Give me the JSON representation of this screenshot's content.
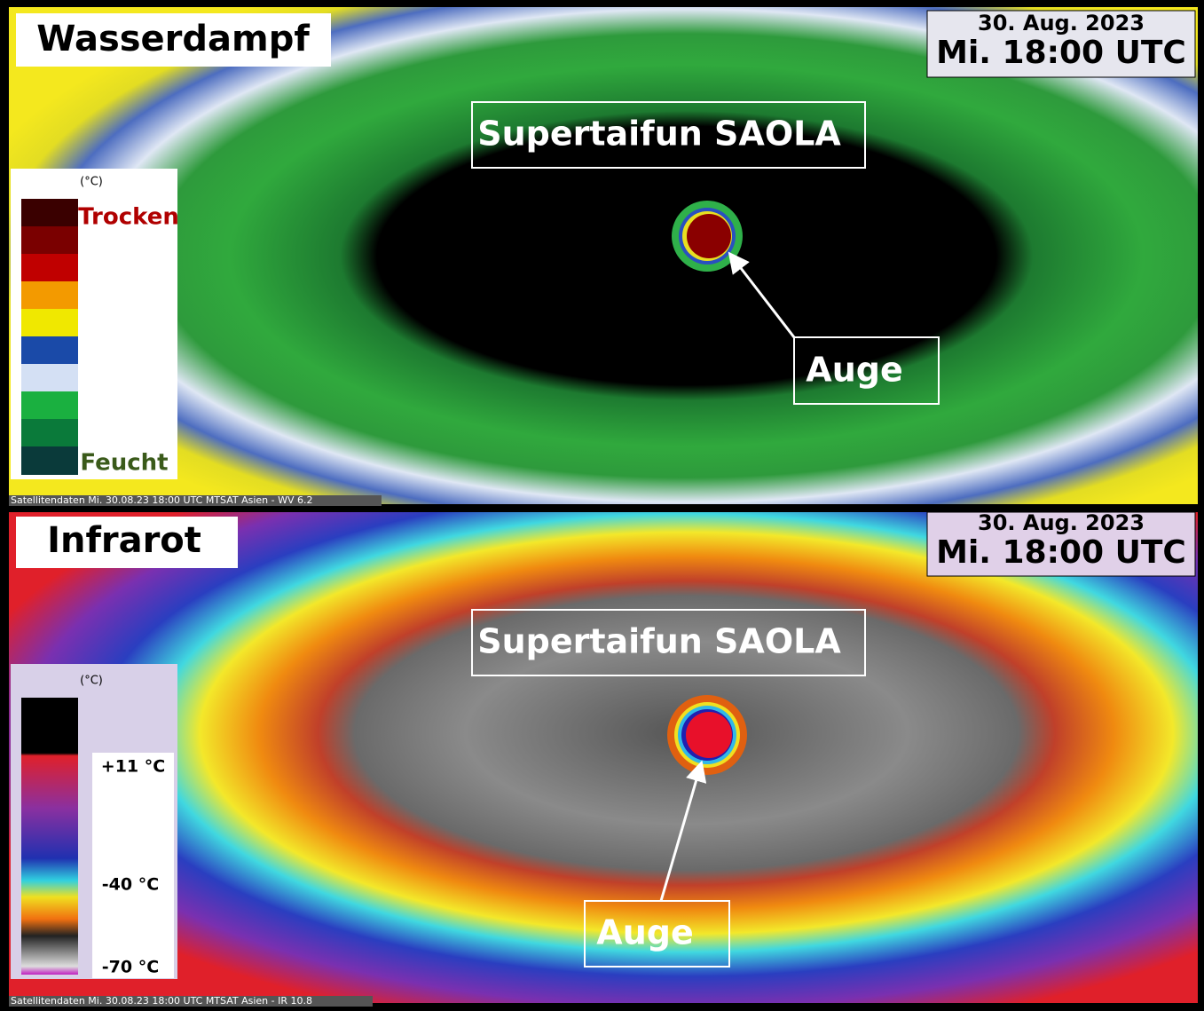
{
  "panels": [
    {
      "title": "Wasserdampf",
      "date": "30. Aug. 2023",
      "time": "Mi. 18:00 UTC",
      "storm_label": "Supertaifun SAOLA",
      "eye_label": "Auge",
      "legend": {
        "unit": "(°C)",
        "top": "Trocken",
        "bottom": "Feucht"
      },
      "footer": "Satellitendaten  Mi. 30.08.23 18:00 UTC  MTSAT Asien - WV 6.2"
    },
    {
      "title": "Infrarot",
      "date": "30. Aug. 2023",
      "time": "Mi. 18:00 UTC",
      "storm_label": "Supertaifun SAOLA",
      "eye_label": "Auge",
      "legend": {
        "unit": "(°C)",
        "labels": [
          "+11 °C",
          "-40 °C",
          "-70 °C"
        ]
      },
      "footer": "Satellitendaten  Mi. 30.08.23 18:00 UTC  MTSAT Asien - IR 10.8"
    }
  ]
}
